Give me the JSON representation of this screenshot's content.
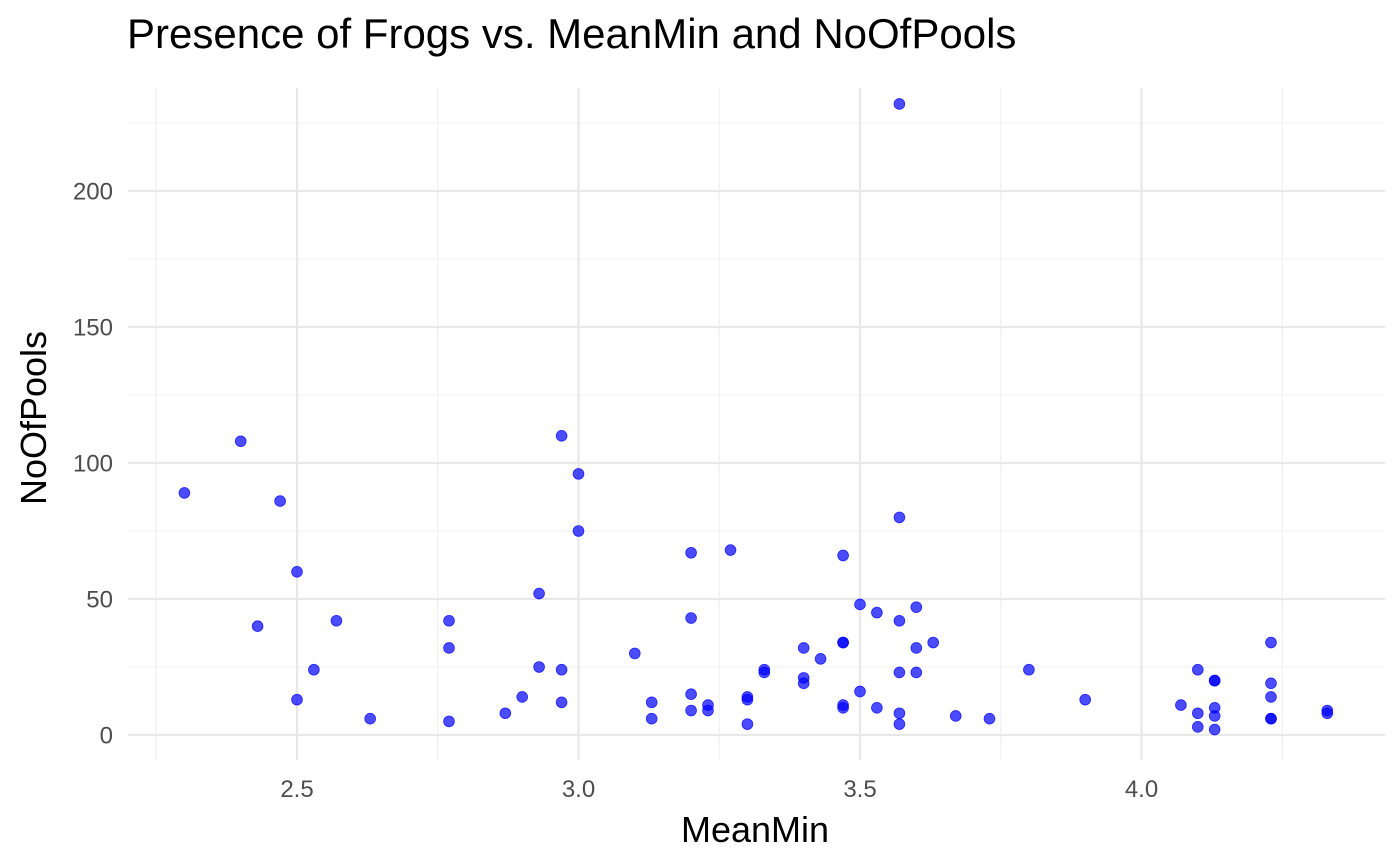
{
  "chart_data": {
    "type": "scatter",
    "title": "Presence of Frogs vs. MeanMin and NoOfPools",
    "xlabel": "MeanMin",
    "ylabel": "NoOfPools",
    "xlim": [
      2.25,
      4.35
    ],
    "ylim": [
      -3,
      240
    ],
    "x_ticks": [
      2.5,
      3.0,
      3.5,
      4.0
    ],
    "x_tick_labels": [
      "2.5",
      "3.0",
      "3.5",
      "4.0"
    ],
    "y_ticks": [
      0,
      50,
      100,
      150,
      200
    ],
    "y_tick_labels": [
      "0",
      "50",
      "100",
      "150",
      "200"
    ],
    "grid": true,
    "legend": "none",
    "point_color": "#0000ff",
    "points": [
      {
        "x": 2.3,
        "y": 89
      },
      {
        "x": 2.4,
        "y": 108
      },
      {
        "x": 2.43,
        "y": 40
      },
      {
        "x": 2.47,
        "y": 86
      },
      {
        "x": 2.5,
        "y": 60
      },
      {
        "x": 2.5,
        "y": 13
      },
      {
        "x": 2.53,
        "y": 24
      },
      {
        "x": 2.57,
        "y": 42
      },
      {
        "x": 2.63,
        "y": 6
      },
      {
        "x": 2.77,
        "y": 42
      },
      {
        "x": 2.77,
        "y": 32
      },
      {
        "x": 2.77,
        "y": 5
      },
      {
        "x": 2.87,
        "y": 8
      },
      {
        "x": 2.9,
        "y": 14
      },
      {
        "x": 2.93,
        "y": 52
      },
      {
        "x": 2.93,
        "y": 25
      },
      {
        "x": 2.97,
        "y": 110
      },
      {
        "x": 2.97,
        "y": 24
      },
      {
        "x": 2.97,
        "y": 12
      },
      {
        "x": 3.0,
        "y": 96
      },
      {
        "x": 3.0,
        "y": 75
      },
      {
        "x": 3.1,
        "y": 30
      },
      {
        "x": 3.13,
        "y": 12
      },
      {
        "x": 3.13,
        "y": 6
      },
      {
        "x": 3.2,
        "y": 67
      },
      {
        "x": 3.2,
        "y": 43
      },
      {
        "x": 3.2,
        "y": 15
      },
      {
        "x": 3.2,
        "y": 9
      },
      {
        "x": 3.23,
        "y": 11
      },
      {
        "x": 3.23,
        "y": 9
      },
      {
        "x": 3.27,
        "y": 68
      },
      {
        "x": 3.3,
        "y": 14
      },
      {
        "x": 3.3,
        "y": 13
      },
      {
        "x": 3.3,
        "y": 4
      },
      {
        "x": 3.33,
        "y": 24
      },
      {
        "x": 3.33,
        "y": 23
      },
      {
        "x": 3.4,
        "y": 32
      },
      {
        "x": 3.4,
        "y": 21
      },
      {
        "x": 3.4,
        "y": 19
      },
      {
        "x": 3.43,
        "y": 28
      },
      {
        "x": 3.47,
        "y": 66
      },
      {
        "x": 3.47,
        "y": 34
      },
      {
        "x": 3.47,
        "y": 34
      },
      {
        "x": 3.47,
        "y": 11
      },
      {
        "x": 3.47,
        "y": 10
      },
      {
        "x": 3.5,
        "y": 48
      },
      {
        "x": 3.5,
        "y": 16
      },
      {
        "x": 3.53,
        "y": 45
      },
      {
        "x": 3.53,
        "y": 10
      },
      {
        "x": 3.57,
        "y": 232
      },
      {
        "x": 3.57,
        "y": 80
      },
      {
        "x": 3.57,
        "y": 42
      },
      {
        "x": 3.57,
        "y": 23
      },
      {
        "x": 3.57,
        "y": 8
      },
      {
        "x": 3.57,
        "y": 4
      },
      {
        "x": 3.6,
        "y": 47
      },
      {
        "x": 3.6,
        "y": 32
      },
      {
        "x": 3.6,
        "y": 23
      },
      {
        "x": 3.63,
        "y": 34
      },
      {
        "x": 3.67,
        "y": 7
      },
      {
        "x": 3.73,
        "y": 6
      },
      {
        "x": 3.8,
        "y": 24
      },
      {
        "x": 3.9,
        "y": 13
      },
      {
        "x": 4.07,
        "y": 11
      },
      {
        "x": 4.1,
        "y": 24
      },
      {
        "x": 4.1,
        "y": 8
      },
      {
        "x": 4.1,
        "y": 3
      },
      {
        "x": 4.13,
        "y": 20
      },
      {
        "x": 4.13,
        "y": 20
      },
      {
        "x": 4.13,
        "y": 10
      },
      {
        "x": 4.13,
        "y": 7
      },
      {
        "x": 4.13,
        "y": 2
      },
      {
        "x": 4.23,
        "y": 34
      },
      {
        "x": 4.23,
        "y": 19
      },
      {
        "x": 4.23,
        "y": 14
      },
      {
        "x": 4.23,
        "y": 6
      },
      {
        "x": 4.23,
        "y": 6
      },
      {
        "x": 4.33,
        "y": 9
      },
      {
        "x": 4.33,
        "y": 8
      }
    ]
  }
}
